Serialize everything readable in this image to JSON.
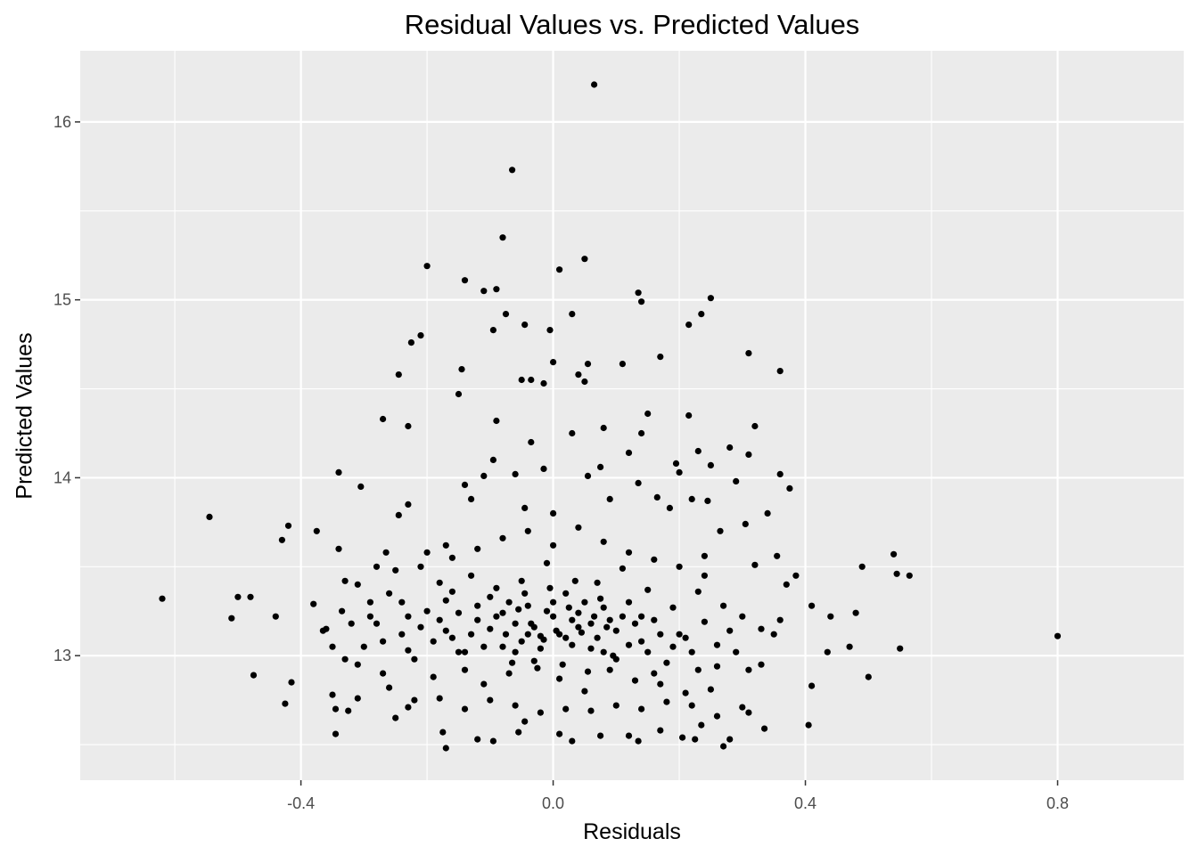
{
  "chart_data": {
    "type": "scatter",
    "title": "Residual Values vs. Predicted Values",
    "xlabel": "Residuals",
    "ylabel": "Predicted Values",
    "xlim": [
      -0.75,
      1.0
    ],
    "ylim": [
      12.3,
      16.4
    ],
    "x_ticks": [
      -0.4,
      0.0,
      0.4,
      0.8
    ],
    "x_tick_labels": [
      "-0.4",
      "0.0",
      "0.4",
      "0.8"
    ],
    "y_ticks": [
      13,
      14,
      15,
      16
    ],
    "y_tick_labels": [
      "13",
      "14",
      "15",
      "16"
    ],
    "grid": true,
    "legend": "none",
    "colors": {
      "panel": "#ebebeb",
      "grid": "#ffffff",
      "point": "#000000",
      "tick_text": "#4d4d4d"
    },
    "points": [
      [
        0.065,
        16.21
      ],
      [
        -0.065,
        15.73
      ],
      [
        -0.08,
        15.35
      ],
      [
        0.05,
        15.23
      ],
      [
        -0.2,
        15.19
      ],
      [
        0.01,
        15.17
      ],
      [
        -0.14,
        15.11
      ],
      [
        -0.11,
        15.05
      ],
      [
        -0.09,
        15.06
      ],
      [
        0.135,
        15.04
      ],
      [
        0.25,
        15.01
      ],
      [
        0.14,
        14.99
      ],
      [
        -0.075,
        14.92
      ],
      [
        0.03,
        14.92
      ],
      [
        0.235,
        14.92
      ],
      [
        -0.045,
        14.86
      ],
      [
        0.215,
        14.86
      ],
      [
        -0.095,
        14.83
      ],
      [
        -0.005,
        14.83
      ],
      [
        -0.21,
        14.8
      ],
      [
        -0.225,
        14.76
      ],
      [
        0.31,
        14.7
      ],
      [
        0.17,
        14.68
      ],
      [
        0.0,
        14.65
      ],
      [
        0.055,
        14.64
      ],
      [
        0.11,
        14.64
      ],
      [
        -0.145,
        14.61
      ],
      [
        0.36,
        14.6
      ],
      [
        0.04,
        14.58
      ],
      [
        -0.245,
        14.58
      ],
      [
        -0.05,
        14.55
      ],
      [
        -0.035,
        14.55
      ],
      [
        0.05,
        14.54
      ],
      [
        -0.015,
        14.53
      ],
      [
        -0.15,
        14.47
      ],
      [
        0.15,
        14.36
      ],
      [
        -0.09,
        14.32
      ],
      [
        -0.27,
        14.33
      ],
      [
        0.215,
        14.35
      ],
      [
        -0.23,
        14.29
      ],
      [
        0.32,
        14.29
      ],
      [
        0.08,
        14.28
      ],
      [
        0.03,
        14.25
      ],
      [
        0.14,
        14.25
      ],
      [
        -0.035,
        14.2
      ],
      [
        0.28,
        14.17
      ],
      [
        0.23,
        14.15
      ],
      [
        0.31,
        14.13
      ],
      [
        0.12,
        14.14
      ],
      [
        -0.095,
        14.1
      ],
      [
        0.25,
        14.07
      ],
      [
        0.195,
        14.08
      ],
      [
        -0.015,
        14.05
      ],
      [
        0.075,
        14.06
      ],
      [
        -0.06,
        14.02
      ],
      [
        -0.34,
        14.03
      ],
      [
        0.36,
        14.02
      ],
      [
        -0.11,
        14.01
      ],
      [
        0.055,
        14.01
      ],
      [
        0.2,
        14.03
      ],
      [
        0.29,
        13.98
      ],
      [
        0.135,
        13.97
      ],
      [
        0.375,
        13.94
      ],
      [
        -0.305,
        13.95
      ],
      [
        -0.14,
        13.96
      ],
      [
        -0.13,
        13.88
      ],
      [
        0.22,
        13.88
      ],
      [
        -0.23,
        13.85
      ],
      [
        0.165,
        13.89
      ],
      [
        0.09,
        13.88
      ],
      [
        0.245,
        13.87
      ],
      [
        0.185,
        13.83
      ],
      [
        -0.045,
        13.83
      ],
      [
        -0.545,
        13.78
      ],
      [
        -0.245,
        13.79
      ],
      [
        0.34,
        13.8
      ],
      [
        0.0,
        13.8
      ],
      [
        -0.42,
        13.73
      ],
      [
        0.305,
        13.74
      ],
      [
        -0.43,
        13.65
      ],
      [
        -0.375,
        13.7
      ],
      [
        0.265,
        13.7
      ],
      [
        -0.17,
        13.62
      ],
      [
        0.24,
        13.56
      ],
      [
        -0.34,
        13.6
      ],
      [
        0.355,
        13.56
      ],
      [
        -0.265,
        13.58
      ],
      [
        0.54,
        13.57
      ],
      [
        0.32,
        13.51
      ],
      [
        0.49,
        13.5
      ],
      [
        0.545,
        13.46
      ],
      [
        0.565,
        13.45
      ],
      [
        0.385,
        13.45
      ],
      [
        0.37,
        13.4
      ],
      [
        -0.38,
        13.29
      ],
      [
        -0.335,
        13.25
      ],
      [
        -0.365,
        13.14
      ],
      [
        -0.5,
        13.33
      ],
      [
        -0.48,
        13.33
      ],
      [
        -0.62,
        13.32
      ],
      [
        -0.51,
        13.21
      ],
      [
        -0.44,
        13.22
      ],
      [
        0.44,
        13.22
      ],
      [
        0.48,
        13.24
      ],
      [
        0.41,
        13.28
      ],
      [
        0.36,
        13.2
      ],
      [
        0.8,
        13.11
      ],
      [
        0.55,
        13.04
      ],
      [
        0.47,
        13.05
      ],
      [
        0.435,
        13.02
      ],
      [
        0.5,
        12.88
      ],
      [
        -0.475,
        12.89
      ],
      [
        -0.415,
        12.85
      ],
      [
        -0.425,
        12.73
      ],
      [
        0.41,
        12.83
      ],
      [
        -0.35,
        12.78
      ],
      [
        -0.31,
        12.76
      ],
      [
        -0.345,
        12.7
      ],
      [
        -0.325,
        12.69
      ],
      [
        -0.345,
        12.56
      ],
      [
        0.405,
        12.61
      ],
      [
        0.335,
        12.59
      ],
      [
        0.31,
        12.68
      ],
      [
        0.3,
        12.71
      ],
      [
        -0.25,
        12.65
      ],
      [
        -0.23,
        12.71
      ],
      [
        -0.17,
        12.48
      ],
      [
        -0.175,
        12.57
      ],
      [
        -0.12,
        12.53
      ],
      [
        -0.055,
        12.57
      ],
      [
        -0.045,
        12.63
      ],
      [
        -0.095,
        12.52
      ],
      [
        0.01,
        12.56
      ],
      [
        0.075,
        12.55
      ],
      [
        0.03,
        12.52
      ],
      [
        0.12,
        12.55
      ],
      [
        0.135,
        12.52
      ],
      [
        0.205,
        12.54
      ],
      [
        0.225,
        12.53
      ],
      [
        0.27,
        12.49
      ],
      [
        0.28,
        12.53
      ],
      [
        0.26,
        12.66
      ],
      [
        0.17,
        12.58
      ],
      [
        0.235,
        12.61
      ],
      [
        -0.3,
        13.05
      ],
      [
        -0.28,
        13.18
      ],
      [
        -0.26,
        13.35
      ],
      [
        -0.24,
        13.12
      ],
      [
        -0.22,
        12.98
      ],
      [
        -0.2,
        13.25
      ],
      [
        -0.18,
        13.41
      ],
      [
        -0.16,
        13.1
      ],
      [
        -0.14,
        12.92
      ],
      [
        -0.12,
        13.2
      ],
      [
        -0.1,
        13.33
      ],
      [
        -0.08,
        13.05
      ],
      [
        -0.06,
        13.18
      ],
      [
        -0.04,
        13.28
      ],
      [
        -0.02,
        13.11
      ],
      [
        0.0,
        13.22
      ],
      [
        0.02,
        13.35
      ],
      [
        0.04,
        13.16
      ],
      [
        0.06,
        13.04
      ],
      [
        0.08,
        13.27
      ],
      [
        0.1,
        13.14
      ],
      [
        0.12,
        13.3
      ],
      [
        0.14,
        13.08
      ],
      [
        0.16,
        13.2
      ],
      [
        0.18,
        12.96
      ],
      [
        0.2,
        13.12
      ],
      [
        0.22,
        13.02
      ],
      [
        0.24,
        13.19
      ],
      [
        0.26,
        12.94
      ],
      [
        0.28,
        13.14
      ],
      [
        -0.29,
        13.3
      ],
      [
        -0.27,
        12.9
      ],
      [
        -0.25,
        13.48
      ],
      [
        -0.23,
        13.03
      ],
      [
        -0.21,
        13.16
      ],
      [
        -0.19,
        12.88
      ],
      [
        -0.17,
        13.31
      ],
      [
        -0.15,
        13.02
      ],
      [
        -0.13,
        13.45
      ],
      [
        -0.11,
        12.84
      ],
      [
        -0.09,
        13.38
      ],
      [
        -0.07,
        12.9
      ],
      [
        -0.05,
        13.42
      ],
      [
        -0.03,
        12.97
      ],
      [
        -0.01,
        13.52
      ],
      [
        0.01,
        12.87
      ],
      [
        0.03,
        13.06
      ],
      [
        0.05,
        12.8
      ],
      [
        0.07,
        13.41
      ],
      [
        0.09,
        12.92
      ],
      [
        0.11,
        13.49
      ],
      [
        0.13,
        12.86
      ],
      [
        0.15,
        13.37
      ],
      [
        0.17,
        12.84
      ],
      [
        0.19,
        13.27
      ],
      [
        0.21,
        12.79
      ],
      [
        0.23,
        13.36
      ],
      [
        0.25,
        12.81
      ],
      [
        -0.32,
        13.18
      ],
      [
        -0.31,
        12.95
      ],
      [
        -0.28,
        13.5
      ],
      [
        -0.26,
        12.82
      ],
      [
        -0.24,
        13.3
      ],
      [
        -0.22,
        12.75
      ],
      [
        -0.2,
        13.58
      ],
      [
        -0.18,
        12.76
      ],
      [
        -0.16,
        13.55
      ],
      [
        -0.14,
        12.7
      ],
      [
        -0.12,
        13.6
      ],
      [
        -0.1,
        12.75
      ],
      [
        -0.08,
        13.66
      ],
      [
        -0.06,
        12.72
      ],
      [
        -0.04,
        13.7
      ],
      [
        -0.02,
        12.68
      ],
      [
        0.0,
        13.62
      ],
      [
        0.02,
        12.7
      ],
      [
        0.04,
        13.72
      ],
      [
        0.06,
        12.69
      ],
      [
        0.08,
        13.64
      ],
      [
        0.1,
        12.72
      ],
      [
        0.12,
        13.58
      ],
      [
        0.14,
        12.7
      ],
      [
        0.16,
        13.54
      ],
      [
        0.18,
        12.74
      ],
      [
        0.2,
        13.5
      ],
      [
        0.22,
        12.72
      ],
      [
        0.24,
        13.45
      ],
      [
        0.26,
        13.06
      ],
      [
        0.27,
        13.28
      ],
      [
        0.29,
        13.02
      ],
      [
        0.3,
        13.22
      ],
      [
        0.31,
        12.92
      ],
      [
        0.33,
        13.15
      ],
      [
        0.33,
        12.95
      ],
      [
        0.35,
        13.12
      ],
      [
        -0.33,
        13.42
      ],
      [
        -0.31,
        13.4
      ],
      [
        -0.29,
        13.22
      ],
      [
        -0.35,
        13.05
      ],
      [
        -0.36,
        13.15
      ],
      [
        -0.33,
        12.98
      ],
      [
        -0.27,
        13.08
      ],
      [
        -0.23,
        13.22
      ],
      [
        -0.21,
        13.5
      ],
      [
        -0.19,
        13.08
      ],
      [
        -0.17,
        13.14
      ],
      [
        -0.15,
        13.24
      ],
      [
        -0.13,
        13.12
      ],
      [
        -0.11,
        13.05
      ],
      [
        -0.09,
        13.22
      ],
      [
        -0.07,
        13.3
      ],
      [
        -0.05,
        13.08
      ],
      [
        -0.03,
        13.16
      ],
      [
        -0.01,
        13.25
      ],
      [
        0.01,
        13.12
      ],
      [
        0.03,
        13.2
      ],
      [
        0.05,
        13.3
      ],
      [
        0.07,
        13.1
      ],
      [
        0.09,
        13.2
      ],
      [
        0.11,
        13.22
      ],
      [
        0.13,
        13.18
      ],
      [
        0.15,
        13.02
      ],
      [
        0.17,
        13.12
      ],
      [
        0.19,
        13.05
      ],
      [
        0.21,
        13.1
      ],
      [
        0.23,
        12.92
      ],
      [
        -0.18,
        13.2
      ],
      [
        -0.16,
        13.36
      ],
      [
        -0.14,
        13.02
      ],
      [
        -0.12,
        13.28
      ],
      [
        -0.1,
        13.15
      ],
      [
        -0.08,
        13.24
      ],
      [
        -0.06,
        13.02
      ],
      [
        -0.04,
        13.12
      ],
      [
        -0.02,
        13.04
      ],
      [
        0.0,
        13.3
      ],
      [
        0.02,
        13.1
      ],
      [
        0.04,
        13.24
      ],
      [
        0.06,
        13.18
      ],
      [
        0.08,
        13.02
      ],
      [
        0.1,
        12.98
      ],
      [
        0.12,
        13.06
      ],
      [
        0.14,
        13.22
      ],
      [
        0.16,
        12.9
      ],
      [
        -0.075,
        13.12
      ],
      [
        -0.055,
        13.26
      ],
      [
        -0.035,
        13.18
      ],
      [
        -0.015,
        13.09
      ],
      [
        0.005,
        13.14
      ],
      [
        0.025,
        13.27
      ],
      [
        0.045,
        13.13
      ],
      [
        0.065,
        13.22
      ],
      [
        0.085,
        13.16
      ],
      [
        -0.065,
        12.96
      ],
      [
        -0.025,
        12.93
      ],
      [
        0.015,
        12.95
      ],
      [
        0.055,
        12.91
      ],
      [
        0.095,
        13.0
      ],
      [
        -0.045,
        13.35
      ],
      [
        -0.005,
        13.38
      ],
      [
        0.035,
        13.42
      ],
      [
        0.075,
        13.32
      ]
    ]
  }
}
